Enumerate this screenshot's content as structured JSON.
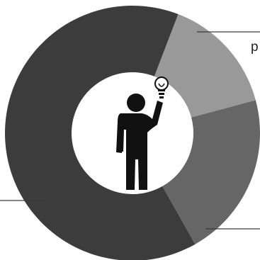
{
  "colors": {
    "background": "#ffffff",
    "leader_line": "#3a3a3a",
    "figure": "#111111"
  },
  "chart_data": {
    "type": "pie",
    "style": "donut",
    "slices": [
      {
        "value": 15,
        "color": "#999999"
      },
      {
        "value": 21,
        "color": "#666666"
      },
      {
        "value": 64,
        "color": "#3c3c3c"
      }
    ],
    "annotations": [
      {
        "text": "p"
      }
    ],
    "center_icon": "person-with-lightbulb-icon",
    "legend": "none"
  }
}
